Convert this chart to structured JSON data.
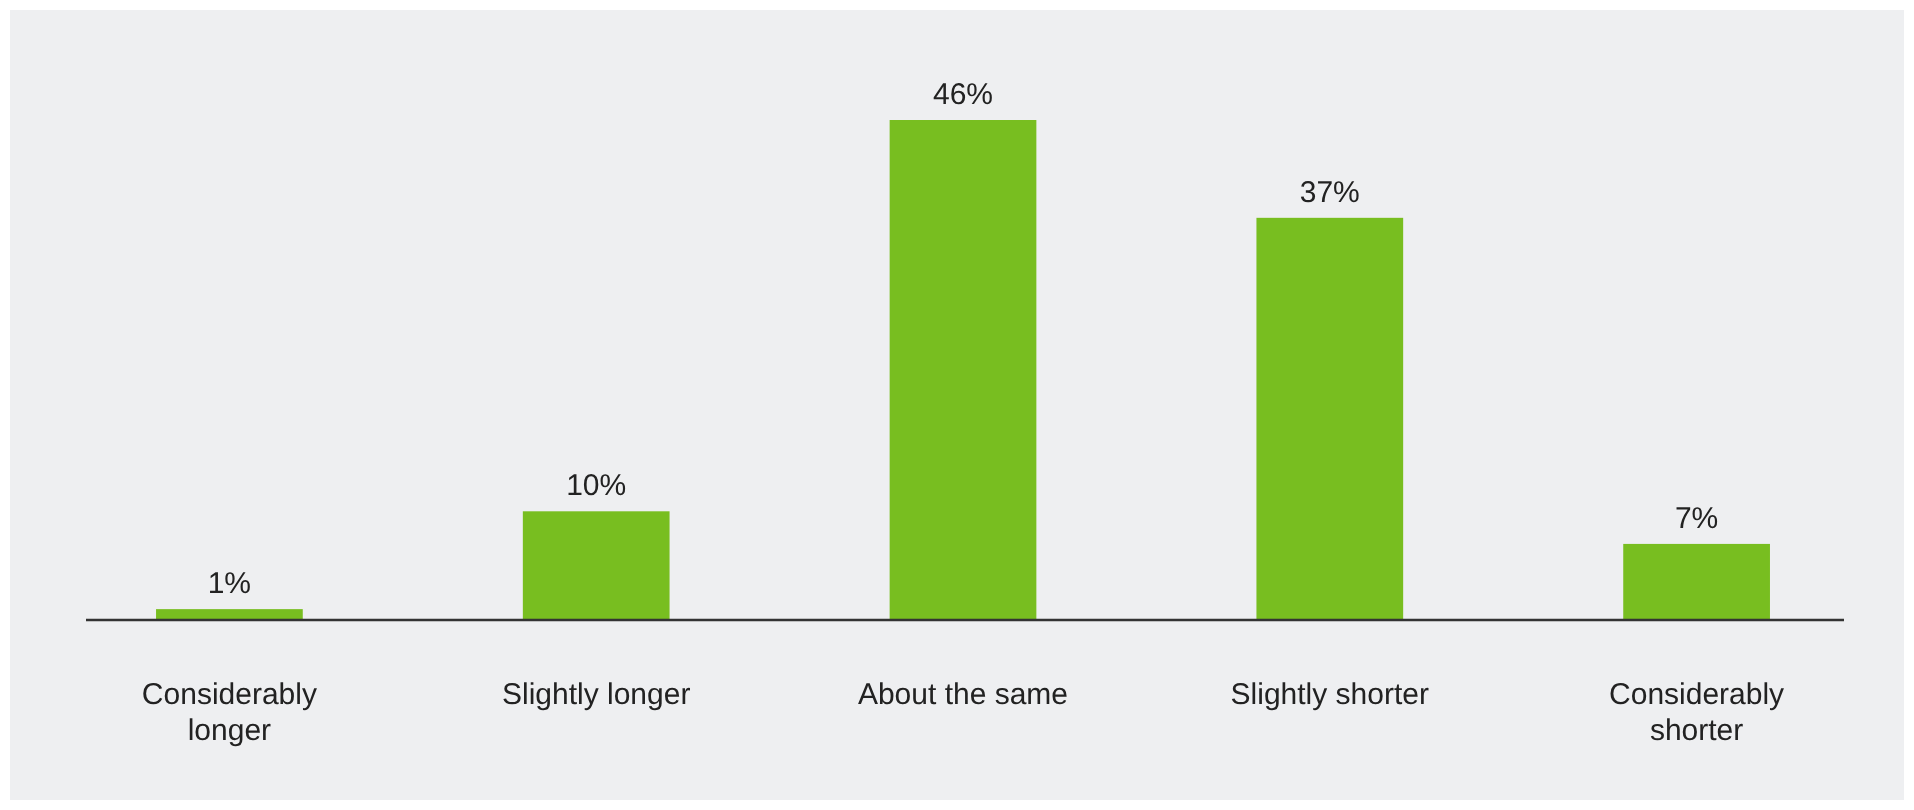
{
  "chart_data": {
    "type": "bar",
    "categories": [
      "Considerably longer",
      "Slightly longer",
      "About the same",
      "Slightly shorter",
      "Considerably shorter"
    ],
    "values": [
      1,
      10,
      46,
      37,
      7
    ],
    "value_labels": [
      "1%",
      "10%",
      "46%",
      "37%",
      "7%"
    ],
    "color": "#78be20"
  }
}
